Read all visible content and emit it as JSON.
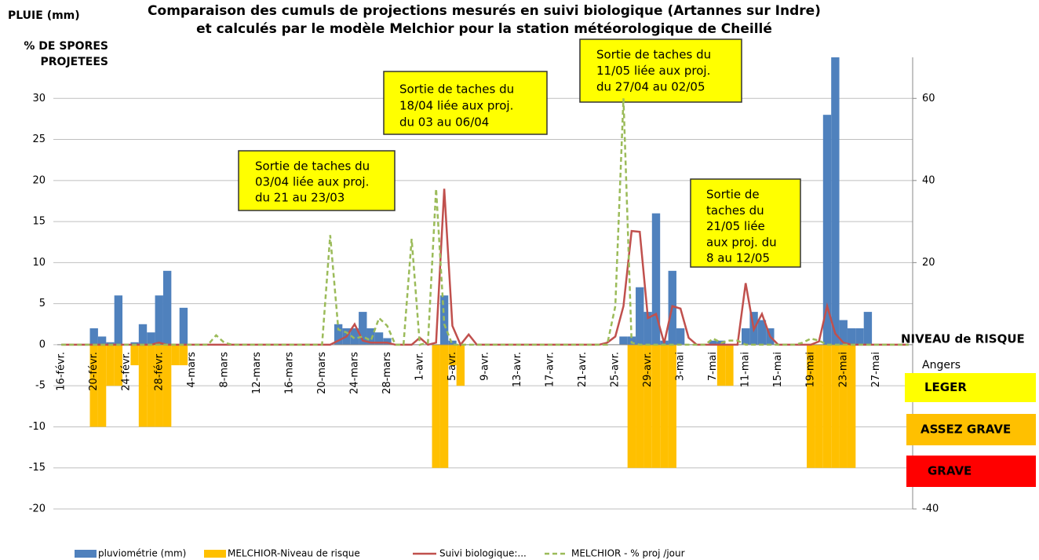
{
  "chart_data": {
    "type": "bar",
    "title_lines": [
      "Comparaison des cumuls de projections mesurés en suivi biologique (Artannes sur Indre)",
      "et calculés par le modèle  Melchior pour la station météorologique de Cheillé"
    ],
    "y_label": "PLUIE (mm)",
    "y2_label_lines": [
      "% DE SPORES",
      "PROJETEES"
    ],
    "categories": [
      "16-févr.",
      null,
      null,
      null,
      "20-févr.",
      null,
      null,
      null,
      "24-févr.",
      null,
      null,
      null,
      "28-févr.",
      null,
      null,
      null,
      "4-mars",
      null,
      null,
      null,
      "8-mars",
      null,
      null,
      null,
      "12-mars",
      null,
      null,
      null,
      "16-mars",
      null,
      null,
      null,
      "20-mars",
      null,
      null,
      null,
      "24-mars",
      null,
      null,
      null,
      "28-mars",
      null,
      null,
      null,
      "1-avr.",
      null,
      null,
      null,
      "5-avr.",
      null,
      null,
      null,
      "9-avr.",
      null,
      null,
      null,
      "13-avr.",
      null,
      null,
      null,
      "17-avr.",
      null,
      null,
      null,
      "21-avr.",
      null,
      null,
      null,
      "25-avr.",
      null,
      null,
      null,
      "29-avr.",
      null,
      null,
      null,
      "3-mai",
      null,
      null,
      null,
      "7-mai",
      null,
      null,
      null,
      "11-mai",
      null,
      null,
      null,
      "15-mai",
      null,
      null,
      null,
      "19-mai",
      null,
      null,
      null,
      "23-mai",
      null,
      null,
      null,
      "27-mai",
      null,
      null,
      null,
      null
    ],
    "ylim": [
      -20,
      35
    ],
    "yticks": [
      -20,
      -15,
      -10,
      -5,
      0,
      5,
      10,
      15,
      20,
      25,
      30
    ],
    "y2lim": [
      -40,
      70
    ],
    "y2ticks": [
      -40,
      20,
      40,
      60
    ],
    "grid": true,
    "series": [
      {
        "name": "pluviométrie (mm)",
        "type": "bar",
        "color": "#4f81bd",
        "values": [
          0,
          0,
          0,
          0,
          2,
          1,
          0.3,
          6,
          0,
          0.3,
          2.5,
          1.5,
          6,
          9,
          0,
          4.5,
          0,
          0,
          0,
          0,
          0,
          0,
          0,
          0,
          0,
          0,
          0,
          0,
          0,
          0,
          0,
          0,
          0,
          0,
          2.5,
          2,
          2,
          4,
          2,
          1.5,
          0.8,
          0,
          0,
          0,
          0,
          0,
          0,
          6,
          0.5,
          0,
          0,
          0,
          0,
          0,
          0,
          0,
          0,
          0,
          0,
          0,
          0,
          0,
          0,
          0,
          0,
          0,
          0,
          0,
          0,
          1,
          1,
          7,
          4,
          16,
          0.5,
          9,
          2,
          0,
          0,
          0,
          0.5,
          0.5,
          0,
          0,
          2,
          4,
          3,
          2,
          0,
          0,
          0,
          0,
          0,
          0,
          28,
          35,
          3,
          2,
          2,
          4,
          0,
          0,
          0,
          0,
          0
        ]
      },
      {
        "name": "MELCHIOR-Niveau de risque",
        "type": "bar",
        "color": "#ffc000",
        "values": [
          0,
          0,
          0,
          0,
          -10,
          -10,
          -5,
          -5,
          0,
          -2.5,
          -10,
          -10,
          -10,
          -10,
          -2.5,
          -2.5,
          0,
          0,
          0,
          0,
          0,
          0,
          0,
          0,
          0,
          0,
          0,
          0,
          0,
          0,
          0,
          0,
          0,
          0,
          0,
          0,
          0,
          0,
          0,
          0,
          0,
          0,
          0,
          0,
          0,
          0,
          -15,
          -15,
          -2.5,
          -5,
          0,
          0,
          0,
          0,
          0,
          0,
          0,
          0,
          0,
          0,
          0,
          0,
          0,
          0,
          0,
          0,
          0,
          0,
          0,
          0,
          -15,
          -15,
          -15,
          -15,
          -15,
          -15,
          0,
          0,
          0,
          0,
          0,
          -5,
          -5,
          0,
          0,
          0,
          0,
          0,
          0,
          0,
          0,
          0,
          -15,
          -15,
          -15,
          -15,
          -15,
          -15,
          0,
          0,
          0,
          0,
          0,
          0,
          0
        ]
      },
      {
        "name": "Suivi biologique:...",
        "type": "line",
        "axis": "y2",
        "color": "#c0504d",
        "values": [
          0,
          0,
          0,
          0,
          0,
          0,
          0,
          0,
          0,
          0,
          0,
          0,
          0.5,
          0,
          0,
          0,
          0,
          0,
          0,
          0,
          0,
          0,
          0,
          0,
          0,
          0,
          0,
          0,
          0,
          0,
          0,
          0,
          0,
          0,
          1,
          2,
          5,
          1,
          0.5,
          0.5,
          0.5,
          0,
          0,
          0,
          1.7,
          0,
          0.5,
          38,
          4.6,
          0,
          2.5,
          0,
          0,
          0,
          0,
          0,
          0,
          0,
          0,
          0,
          0,
          0,
          0,
          0,
          0,
          0,
          0,
          0.5,
          2,
          9.4,
          27.7,
          27.5,
          6.5,
          7.5,
          0.4,
          9.4,
          8.8,
          1.7,
          0,
          0,
          0,
          0,
          0,
          0,
          15,
          3.7,
          7.5,
          2,
          0,
          0,
          0,
          0,
          0,
          0.8,
          9.4,
          2.7,
          0.5,
          0,
          0,
          0,
          0,
          0,
          0,
          0,
          0
        ]
      },
      {
        "name": "MELCHIOR - % proj /jour",
        "type": "line",
        "axis": "y2",
        "dash": true,
        "color": "#9bbb59",
        "values": [
          0,
          0,
          0,
          0,
          0,
          0,
          0,
          0,
          0,
          0,
          0,
          0,
          0,
          0,
          0,
          0,
          0,
          0,
          0,
          2.3,
          0.5,
          0,
          0,
          0,
          0,
          0,
          0,
          0,
          0,
          0,
          0,
          0,
          0,
          26.7,
          3.7,
          3,
          1.5,
          2,
          1,
          6.5,
          4.6,
          0,
          0,
          25.8,
          0,
          0.5,
          38,
          5,
          0,
          0,
          0,
          0,
          0,
          0,
          0,
          0,
          0,
          0,
          0,
          0,
          0,
          0,
          0,
          0,
          0,
          0,
          0,
          0,
          9.4,
          60,
          0.5,
          0,
          0,
          0,
          0,
          0,
          0,
          0,
          0,
          0,
          1.5,
          0.5,
          1,
          1,
          0,
          0,
          0,
          0,
          0,
          0,
          0,
          0.5,
          1.5,
          1,
          0,
          0,
          0,
          0,
          0,
          0,
          0,
          0,
          0,
          0,
          0
        ]
      }
    ],
    "annotations": [
      {
        "lines": [
          "Sortie de taches du",
          "03/04 liée aux proj.",
          "du 21 au 23/03"
        ]
      },
      {
        "lines": [
          "Sortie de taches du",
          "18/04 liée aux proj.",
          "du 03 au 06/04"
        ]
      },
      {
        "lines": [
          "Sortie de taches du",
          "11/05 liée aux proj.",
          "du 27/04 au 02/05"
        ]
      },
      {
        "lines": [
          "Sortie de",
          "taches du",
          "21/05 liée",
          "aux proj. du",
          "8 au 12/05"
        ]
      }
    ],
    "risk_legend": {
      "title": "NIVEAU de RISQUE",
      "subtitle": "Angers",
      "levels": [
        {
          "label": "LEGER",
          "color": "#ffff00"
        },
        {
          "label": "ASSEZ GRAVE",
          "color": "#ffc000"
        },
        {
          "label": "GRAVE",
          "color": "#ff0000"
        }
      ]
    }
  }
}
